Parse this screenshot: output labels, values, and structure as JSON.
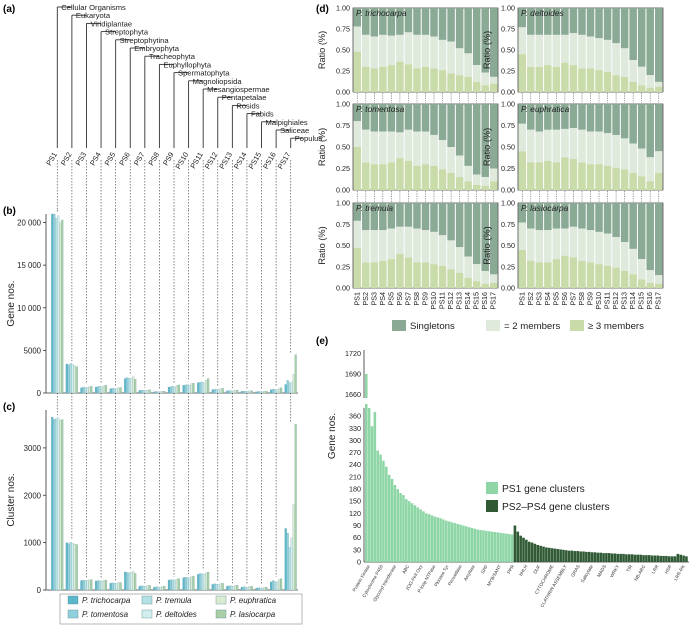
{
  "colors": {
    "trichocarpa": "#5bb8cc",
    "tomentosa": "#8fd0dc",
    "tremula": "#b4e2e4",
    "deltoides": "#d2eeee",
    "euphratica": "#d9ecd2",
    "lasiocarpa": "#a8cfa6",
    "singletons": "#8aaa96",
    "two_members": "#dfe9dc",
    "three_members": "#c9dba9",
    "ps1": "#8fd6a6",
    "ps2_4": "#2f5a34",
    "axis": "#333333",
    "dash": "#555555"
  },
  "panel_labels": {
    "a": "(a)",
    "b": "(b)",
    "c": "(c)",
    "d": "(d)",
    "e": "(e)"
  },
  "chart_data": [
    {
      "panel": "a",
      "type": "tree",
      "taxa": [
        "Cellular Organisms",
        "Eukaryota",
        "Viridiplantae",
        "Streptophyta",
        "Streptophytina",
        "Embryophyta",
        "Tracheophyta",
        "Euphyllophyta",
        "Spermatophyta",
        "Magnoliopsida",
        "Mesangiospermae",
        "Pentapetalae",
        "Rosids",
        "Fabids",
        "Malpighiales",
        "Saliceae",
        "Populus"
      ],
      "phylostrata": [
        "PS1",
        "PS2",
        "PS3",
        "PS4",
        "PS5",
        "PS6",
        "PS7",
        "PS8",
        "PS9",
        "PS10",
        "PS11",
        "PS12",
        "PS13",
        "PS14",
        "PS15",
        "PS16",
        "PS17"
      ]
    },
    {
      "panel": "b",
      "type": "bar",
      "ylabel": "Gene nos.",
      "ylim": [
        0,
        21000
      ],
      "yticks": [
        "0",
        "5000",
        "10 000",
        "15 000",
        "20 000"
      ],
      "ytick_values": [
        0,
        5000,
        10000,
        15000,
        20000
      ],
      "categories": [
        "PS1",
        "PS2",
        "PS3",
        "PS4",
        "PS5",
        "PS6",
        "PS7",
        "PS8",
        "PS9",
        "PS10",
        "PS11",
        "PS12",
        "PS13",
        "PS14",
        "PS15",
        "PS16",
        "PS17"
      ],
      "series": [
        {
          "name": "P. trichocarpa",
          "values": [
            21000,
            3400,
            600,
            700,
            500,
            1700,
            300,
            150,
            700,
            900,
            1200,
            400,
            250,
            200,
            150,
            400,
            1000
          ]
        },
        {
          "name": "P. tomentosa",
          "values": [
            21000,
            3300,
            700,
            750,
            550,
            1800,
            320,
            180,
            750,
            950,
            1250,
            450,
            280,
            220,
            180,
            450,
            1500
          ]
        },
        {
          "name": "P. tremula",
          "values": [
            20500,
            3500,
            650,
            800,
            520,
            1750,
            310,
            170,
            800,
            1000,
            1300,
            430,
            270,
            210,
            170,
            420,
            1200
          ]
        },
        {
          "name": "P. deltoides",
          "values": [
            20800,
            3350,
            680,
            720,
            540,
            1720,
            300,
            160,
            720,
            920,
            1220,
            410,
            260,
            200,
            160,
            410,
            1300
          ]
        },
        {
          "name": "P. euphratica",
          "values": [
            20000,
            3200,
            720,
            850,
            600,
            1900,
            350,
            200,
            900,
            1100,
            1500,
            500,
            300,
            250,
            200,
            500,
            2200
          ]
        },
        {
          "name": "P. lasiocarpa",
          "values": [
            20300,
            3100,
            800,
            900,
            650,
            1600,
            380,
            220,
            950,
            1150,
            1700,
            550,
            330,
            280,
            220,
            600,
            4500
          ]
        }
      ]
    },
    {
      "panel": "c",
      "type": "bar",
      "ylabel": "Cluster nos.",
      "ylim": [
        0,
        3800
      ],
      "yticks": [
        "0",
        "1000",
        "2000",
        "3000"
      ],
      "ytick_values": [
        0,
        1000,
        2000,
        3000
      ],
      "categories": [
        "PS1",
        "PS2",
        "PS3",
        "PS4",
        "PS5",
        "PS6",
        "PS7",
        "PS8",
        "PS9",
        "PS10",
        "PS11",
        "PS12",
        "PS13",
        "PS14",
        "PS15",
        "PS16",
        "PS17"
      ],
      "series": [
        {
          "name": "P. trichocarpa",
          "values": [
            3650,
            1000,
            200,
            190,
            140,
            380,
            80,
            60,
            210,
            260,
            330,
            120,
            80,
            60,
            40,
            170,
            1300
          ]
        },
        {
          "name": "P. tomentosa",
          "values": [
            3600,
            980,
            210,
            200,
            150,
            370,
            90,
            70,
            220,
            270,
            350,
            130,
            90,
            70,
            50,
            200,
            1200
          ]
        },
        {
          "name": "P. tremula",
          "values": [
            3620,
            1010,
            205,
            195,
            145,
            360,
            85,
            65,
            215,
            265,
            340,
            125,
            85,
            65,
            45,
            180,
            900
          ]
        },
        {
          "name": "P. deltoides",
          "values": [
            3640,
            990,
            200,
            190,
            140,
            375,
            82,
            62,
            212,
            262,
            335,
            122,
            82,
            62,
            42,
            175,
            1100
          ]
        },
        {
          "name": "P. euphratica",
          "values": [
            3580,
            970,
            215,
            205,
            155,
            390,
            95,
            75,
            230,
            280,
            360,
            135,
            95,
            75,
            55,
            220,
            1800
          ]
        },
        {
          "name": "P. lasiocarpa",
          "values": [
            3600,
            960,
            220,
            210,
            160,
            350,
            100,
            80,
            240,
            290,
            380,
            140,
            100,
            80,
            60,
            240,
            3500
          ]
        }
      ]
    },
    {
      "panel": "d",
      "type": "bar",
      "stacked": true,
      "ylabel": "Ratio (%)",
      "yticks": [
        "0.00",
        "0.25",
        "0.50",
        "0.75",
        "1.00"
      ],
      "categories": [
        "PS1",
        "PS2",
        "PS3",
        "PS4",
        "PS5",
        "PS6",
        "PS7",
        "PS8",
        "PS9",
        "PS10",
        "PS11",
        "PS12",
        "PS13",
        "PS14",
        "PS15",
        "PS16",
        "PS17"
      ],
      "legend": [
        "Singletons",
        "= 2 members",
        "≥ 3 members"
      ],
      "species": [
        {
          "name": "P. trichocarpa",
          "ge3": [
            0.48,
            0.3,
            0.28,
            0.3,
            0.32,
            0.36,
            0.33,
            0.28,
            0.3,
            0.28,
            0.26,
            0.22,
            0.2,
            0.18,
            0.12,
            0.08,
            0.1
          ],
          "two": [
            0.3,
            0.38,
            0.38,
            0.38,
            0.35,
            0.32,
            0.38,
            0.4,
            0.38,
            0.38,
            0.36,
            0.38,
            0.32,
            0.28,
            0.2,
            0.15,
            0.08
          ]
        },
        {
          "name": "P. deltoides",
          "ge3": [
            0.45,
            0.3,
            0.3,
            0.32,
            0.3,
            0.35,
            0.32,
            0.28,
            0.28,
            0.26,
            0.24,
            0.2,
            0.18,
            0.12,
            0.08,
            0.05,
            0.06
          ],
          "two": [
            0.32,
            0.38,
            0.38,
            0.36,
            0.38,
            0.33,
            0.38,
            0.4,
            0.38,
            0.38,
            0.38,
            0.38,
            0.34,
            0.26,
            0.22,
            0.15,
            0.06
          ]
        },
        {
          "name": "P. tomentosa",
          "ge3": [
            0.5,
            0.32,
            0.3,
            0.3,
            0.32,
            0.37,
            0.34,
            0.28,
            0.3,
            0.28,
            0.24,
            0.2,
            0.15,
            0.1,
            0.06,
            0.05,
            0.1
          ],
          "two": [
            0.3,
            0.38,
            0.38,
            0.38,
            0.36,
            0.3,
            0.36,
            0.4,
            0.38,
            0.36,
            0.34,
            0.3,
            0.25,
            0.18,
            0.12,
            0.1,
            0.15
          ]
        },
        {
          "name": "P. euphratica",
          "ge3": [
            0.45,
            0.32,
            0.32,
            0.34,
            0.32,
            0.38,
            0.36,
            0.32,
            0.3,
            0.3,
            0.28,
            0.26,
            0.24,
            0.2,
            0.16,
            0.1,
            0.2
          ],
          "two": [
            0.32,
            0.38,
            0.36,
            0.36,
            0.38,
            0.33,
            0.36,
            0.38,
            0.38,
            0.38,
            0.38,
            0.38,
            0.36,
            0.34,
            0.32,
            0.28,
            0.25
          ]
        },
        {
          "name": "P. tremula",
          "ge3": [
            0.47,
            0.3,
            0.3,
            0.32,
            0.34,
            0.4,
            0.36,
            0.3,
            0.3,
            0.28,
            0.26,
            0.22,
            0.18,
            0.12,
            0.08,
            0.05,
            0.06
          ],
          "two": [
            0.32,
            0.38,
            0.38,
            0.36,
            0.36,
            0.32,
            0.36,
            0.4,
            0.38,
            0.38,
            0.36,
            0.34,
            0.3,
            0.25,
            0.2,
            0.15,
            0.1
          ]
        },
        {
          "name": "P. lasiocarpa",
          "ge3": [
            0.45,
            0.32,
            0.3,
            0.3,
            0.34,
            0.38,
            0.36,
            0.32,
            0.3,
            0.28,
            0.26,
            0.24,
            0.2,
            0.16,
            0.1,
            0.06,
            0.05
          ],
          "two": [
            0.32,
            0.38,
            0.38,
            0.38,
            0.36,
            0.32,
            0.36,
            0.38,
            0.38,
            0.38,
            0.38,
            0.36,
            0.34,
            0.3,
            0.24,
            0.15,
            0.1
          ]
        }
      ]
    },
    {
      "panel": "e",
      "type": "bar",
      "ylabel": "Gene nos.",
      "yticks_low": [
        "0",
        "30",
        "60",
        "90",
        "120",
        "150",
        "180",
        "210",
        "240",
        "270",
        "300",
        "330",
        "360"
      ],
      "yticks_high": [
        "1660",
        "1690",
        "1720"
      ],
      "legend": [
        "PS1 gene clusters",
        "PS2–PS4 gene clusters"
      ],
      "xlabels": [
        "Protein Kinase",
        "Cytochrome P450",
        "Glycosyl transferase",
        "ABC",
        "2OG-FeII Oxy",
        "P-loop NTPase",
        "Pkinase Tyr",
        "Peroxidase",
        "Amylase",
        "SRF",
        "MYB/SANT",
        "PPR",
        "bHLH",
        "DUF",
        "CYTOCHROME",
        "CLATHRIN ASSEMBLY",
        "GRAS",
        "Salicylate",
        "MADS",
        "WRKY",
        "TIR",
        "NB-ARC",
        "LRR",
        "HSP",
        "LRR-RK"
      ],
      "ps1_values": [
        1690,
        380,
        335,
        370,
        275,
        265,
        250,
        235,
        215,
        205,
        190,
        180,
        170,
        165,
        155,
        150,
        145,
        140,
        135,
        130,
        125,
        120,
        118,
        115,
        112,
        110,
        108,
        105,
        102,
        100,
        98,
        96,
        94,
        92,
        90,
        88,
        86,
        84,
        82,
        80,
        79,
        78,
        77,
        76,
        75,
        74,
        73,
        72,
        71,
        70,
        69,
        68
      ],
      "ps2_values": [
        90,
        75,
        65,
        60,
        55,
        50,
        48,
        45,
        42,
        40,
        38,
        36,
        35,
        34,
        33,
        32,
        31,
        30,
        29,
        28,
        28,
        27,
        27,
        26,
        26,
        25,
        25,
        24,
        24,
        23,
        23,
        22,
        22,
        22,
        21,
        21,
        20,
        20,
        20,
        19,
        19,
        19,
        18,
        18,
        18,
        17,
        17,
        17,
        16,
        16,
        16,
        15,
        15,
        15,
        14,
        14,
        14,
        20,
        18,
        16,
        14
      ]
    }
  ]
}
